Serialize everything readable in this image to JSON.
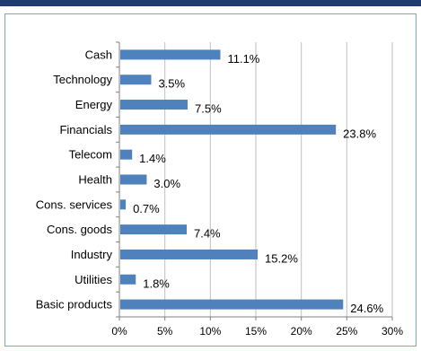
{
  "chart_data": {
    "type": "bar",
    "orientation": "horizontal",
    "categories": [
      "Cash",
      "Technology",
      "Energy",
      "Financials",
      "Telecom",
      "Health",
      "Cons. services",
      "Cons. goods",
      "Industry",
      "Utilities",
      "Basic products"
    ],
    "values": [
      11.1,
      3.5,
      7.5,
      23.8,
      1.4,
      3.0,
      0.7,
      7.4,
      15.2,
      1.8,
      24.6
    ],
    "value_labels": [
      "11.1%",
      "3.5%",
      "7.5%",
      "23.8%",
      "1.4%",
      "3.0%",
      "0.7%",
      "7.4%",
      "15.2%",
      "1.8%",
      "24.6%"
    ],
    "xlim": [
      0,
      30
    ],
    "x_ticks": [
      0,
      5,
      10,
      15,
      20,
      25,
      30
    ],
    "x_tick_labels": [
      "0%",
      "5%",
      "10%",
      "15%",
      "20%",
      "25%",
      "30%"
    ],
    "grid": "vertical",
    "bar_color": "#4f81bd",
    "grid_color": "#bfbfbf",
    "title": "",
    "xlabel": "",
    "ylabel": ""
  }
}
